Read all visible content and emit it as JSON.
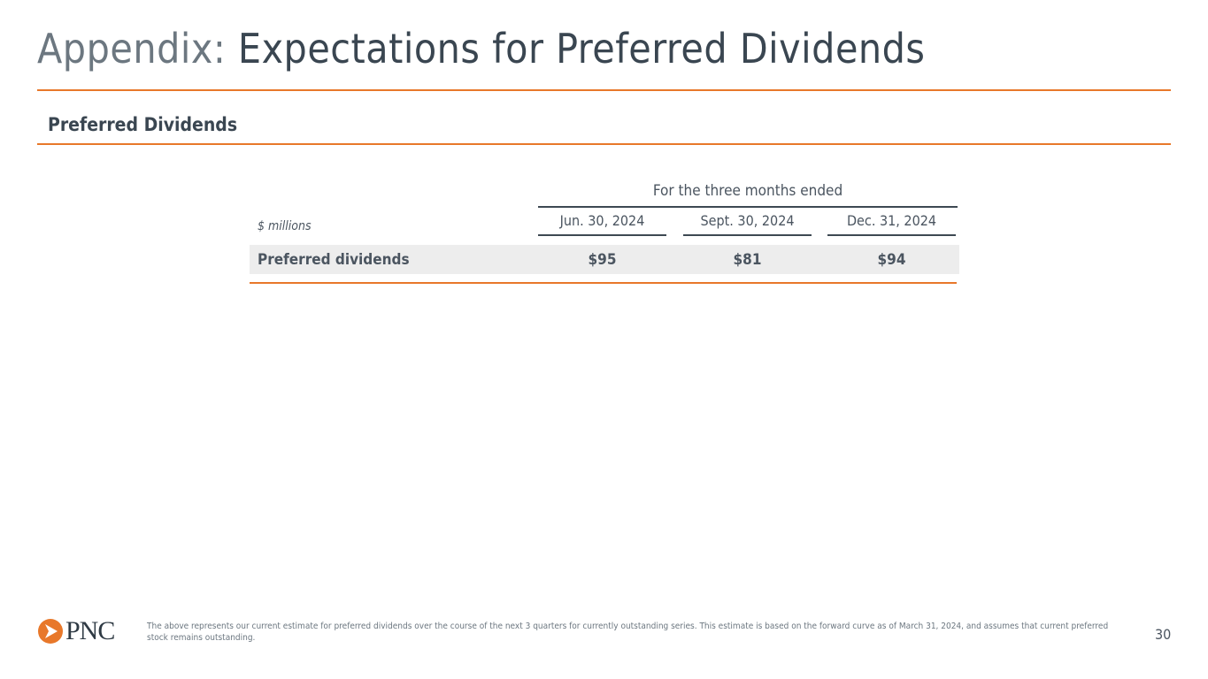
{
  "title": {
    "prefix": "Appendix:",
    "main": " Expectations for Preferred Dividends"
  },
  "section_title": "Preferred Dividends",
  "table": {
    "group_header": "For the three months ended",
    "unit_label": "$ millions",
    "columns": [
      "Jun. 30, 2024",
      "Sept. 30, 2024",
      "Dec. 31, 2024"
    ],
    "rows": [
      {
        "label": "Preferred dividends",
        "values": [
          "$95",
          "$81",
          "$94"
        ]
      }
    ]
  },
  "footer": {
    "logo_text": "PNC",
    "note": "The above represents our current estimate for preferred dividends over the course of the next 3 quarters for currently outstanding series. This estimate is based on the forward curve as of March 31, 2024, and assumes that current preferred stock remains outstanding.",
    "page_number": "30"
  },
  "colors": {
    "accent": "#e8782a",
    "text": "#3a4651"
  }
}
